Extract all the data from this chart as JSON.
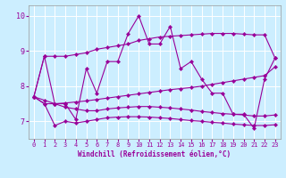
{
  "xlabel": "Windchill (Refroidissement éolien,°C)",
  "bg_color": "#cceeff",
  "line_color": "#990099",
  "xlim": [
    -0.5,
    23.5
  ],
  "ylim": [
    6.5,
    10.3
  ],
  "yticks": [
    7,
    8,
    9,
    10
  ],
  "xticks": [
    0,
    1,
    2,
    3,
    4,
    5,
    6,
    7,
    8,
    9,
    10,
    11,
    12,
    13,
    14,
    15,
    16,
    17,
    18,
    19,
    20,
    21,
    22,
    23
  ],
  "line1": [
    7.7,
    8.85,
    8.85,
    8.85,
    8.9,
    8.95,
    9.05,
    9.1,
    9.15,
    9.2,
    9.3,
    9.35,
    9.4,
    9.42,
    9.44,
    9.46,
    9.48,
    9.5,
    9.5,
    9.5,
    9.48,
    9.46,
    9.46,
    8.8
  ],
  "line2": [
    7.7,
    8.85,
    7.5,
    7.5,
    7.05,
    8.5,
    7.8,
    8.7,
    8.7,
    9.5,
    10.0,
    9.2,
    9.2,
    9.7,
    8.5,
    8.7,
    8.2,
    7.8,
    7.8,
    7.2,
    7.2,
    6.8,
    8.2,
    8.8
  ],
  "line3": [
    7.7,
    7.5,
    7.5,
    7.4,
    7.35,
    7.3,
    7.3,
    7.35,
    7.38,
    7.4,
    7.42,
    7.42,
    7.4,
    7.38,
    7.35,
    7.32,
    7.28,
    7.25,
    7.22,
    7.2,
    7.18,
    7.15,
    7.15,
    7.18
  ],
  "line4": [
    7.7,
    7.5,
    6.88,
    7.0,
    6.95,
    7.0,
    7.05,
    7.1,
    7.12,
    7.13,
    7.13,
    7.12,
    7.1,
    7.08,
    7.05,
    7.02,
    7.0,
    6.97,
    6.95,
    6.92,
    6.9,
    6.88,
    6.88,
    6.9
  ],
  "line5": [
    7.7,
    7.6,
    7.5,
    7.52,
    7.55,
    7.58,
    7.62,
    7.66,
    7.7,
    7.74,
    7.78,
    7.82,
    7.86,
    7.9,
    7.93,
    7.96,
    8.0,
    8.05,
    8.1,
    8.15,
    8.2,
    8.25,
    8.3,
    8.55
  ]
}
